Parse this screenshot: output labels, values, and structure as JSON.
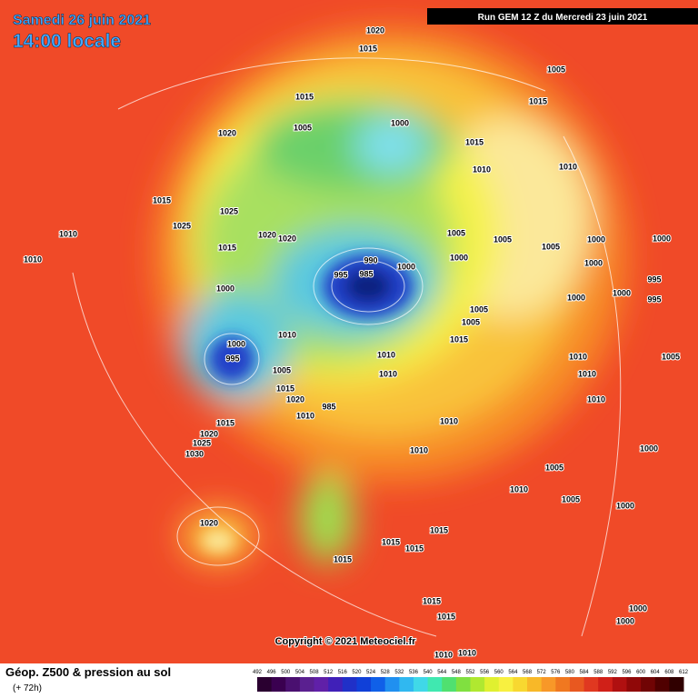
{
  "header": {
    "date": "Samedi 26 juin 2021",
    "time": "14:00 locale",
    "run": "Run GEM 12 Z du Mercredi 23 juin 2021"
  },
  "copyright": "Copyright © 2021 Meteociel.fr",
  "legend": {
    "title": "Géop. Z500 & pression au sol",
    "lead": "(+ 72h)",
    "scale": [
      492,
      496,
      500,
      504,
      508,
      512,
      516,
      520,
      524,
      528,
      532,
      536,
      540,
      544,
      548,
      552,
      556,
      560,
      564,
      568,
      572,
      576,
      580,
      584,
      588,
      592,
      596,
      600,
      604,
      608,
      612
    ]
  },
  "pressure_labels": [
    1020,
    1015,
    1005,
    1015,
    1015,
    1000,
    1005,
    1020,
    1015,
    1010,
    1010,
    1015,
    1025,
    1025,
    1010,
    1020,
    1020,
    1005,
    1005,
    1015,
    1000,
    1005,
    1000,
    1000,
    1000,
    1010,
    990,
    985,
    995,
    1000,
    1000,
    995,
    1000,
    1000,
    995,
    1005,
    1005,
    1010,
    1000,
    1015,
    995,
    1010,
    1005,
    1010,
    1010,
    1005,
    1015,
    1010,
    1020,
    1010,
    985,
    1010,
    1010,
    1015,
    1020,
    1025,
    1030,
    1010,
    1000,
    1005,
    1010,
    1005,
    1000,
    1020,
    1015,
    1015,
    1015,
    1015,
    1015,
    1015,
    1000,
    1000,
    1010,
    1010
  ]
}
